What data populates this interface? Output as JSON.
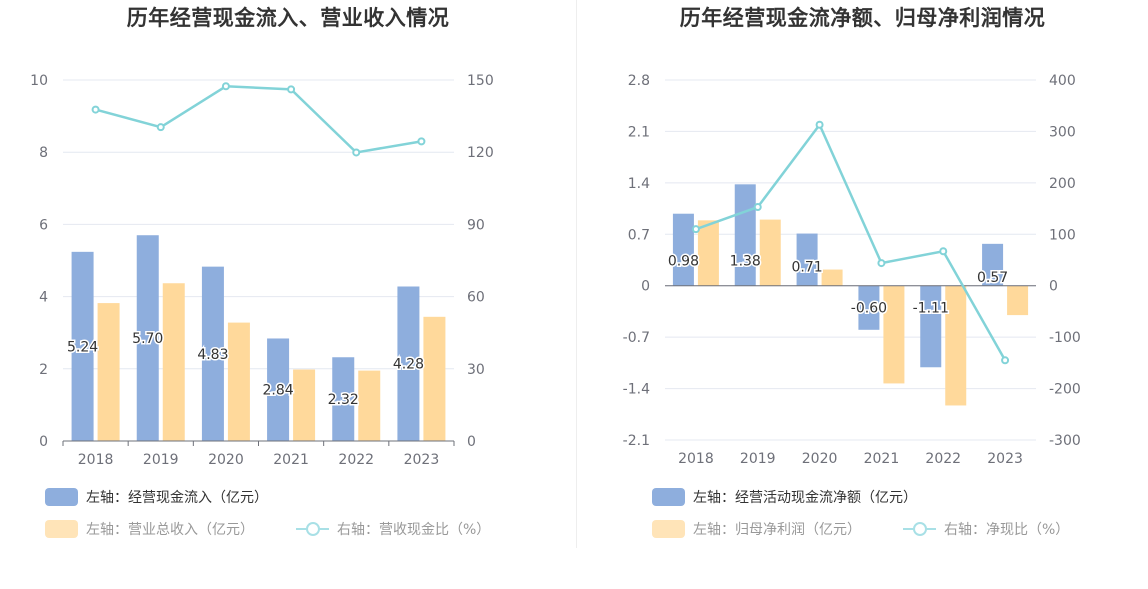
{
  "colors": {
    "blue": "#8eaedd",
    "orange": "#ffd99b",
    "teal": "#82d3d8",
    "grid": "#e4e8f1",
    "axis": "#6e7079"
  },
  "left": {
    "title": "历年经营现金流入、营业收入情况",
    "legend": {
      "bar1": "左轴：经营现金流入（亿元）",
      "bar2": "左轴：营业总收入（亿元）",
      "line": "右轴：营收现金比（%）"
    }
  },
  "right": {
    "title": "历年经营现金流净额、归母净利润情况",
    "legend": {
      "bar1": "左轴：经营活动现金流净额（亿元）",
      "bar2": "左轴：归母净利润（亿元）",
      "line": "右轴：净现比（%）"
    }
  },
  "chart_data": [
    {
      "type": "bar",
      "title": "历年经营现金流入、营业收入情况",
      "categories": [
        "2018",
        "2019",
        "2020",
        "2021",
        "2022",
        "2023"
      ],
      "left_axis": {
        "ylim": [
          0,
          10
        ],
        "ticks": [
          0,
          2,
          4,
          6,
          8,
          10
        ],
        "tick_labels": [
          "0",
          "2",
          "4",
          "6",
          "8",
          "10"
        ]
      },
      "right_axis": {
        "ylim": [
          0,
          150
        ],
        "ticks": [
          0,
          30,
          60,
          90,
          120,
          150
        ],
        "tick_labels": [
          "0",
          "30",
          "60",
          "90",
          "120",
          "150"
        ]
      },
      "series": [
        {
          "name": "左轴：经营现金流入（亿元）",
          "axis": "left",
          "kind": "bar",
          "values": [
            5.24,
            5.7,
            4.83,
            2.84,
            2.32,
            4.28
          ],
          "labels": [
            "5.24",
            "5.70",
            "4.83",
            "2.84",
            "2.32",
            "4.28"
          ]
        },
        {
          "name": "左轴：营业总收入（亿元）",
          "axis": "left",
          "kind": "bar",
          "values": [
            3.82,
            4.37,
            3.28,
            1.98,
            1.95,
            3.44
          ]
        },
        {
          "name": "右轴：营收现金比（%）",
          "axis": "right",
          "kind": "line",
          "values": [
            137.7,
            130.4,
            147.4,
            146.1,
            119.9,
            124.5
          ]
        }
      ],
      "grid": true,
      "legend_position": "bottom-left"
    },
    {
      "type": "bar",
      "title": "历年经营现金流净额、归母净利润情况",
      "categories": [
        "2018",
        "2019",
        "2020",
        "2021",
        "2022",
        "2023"
      ],
      "left_axis": {
        "ylim": [
          -2.1,
          2.8
        ],
        "ticks": [
          -2.1,
          -1.4,
          -0.7,
          0,
          0.7,
          1.4,
          2.1,
          2.8
        ],
        "tick_labels": [
          "-2.1",
          "-1.4",
          "-0.7",
          "0",
          "0.7",
          "1.4",
          "2.1",
          "2.8"
        ]
      },
      "right_axis": {
        "ylim": [
          -300,
          400
        ],
        "ticks": [
          -300,
          -200,
          -100,
          0,
          100,
          200,
          300,
          400
        ],
        "tick_labels": [
          "-300",
          "-200",
          "-100",
          "0",
          "100",
          "200",
          "300",
          "400"
        ]
      },
      "series": [
        {
          "name": "左轴：经营活动现金流净额（亿元）",
          "axis": "left",
          "kind": "bar",
          "values": [
            0.98,
            1.38,
            0.71,
            -0.6,
            -1.11,
            0.57
          ],
          "labels": [
            "0.98",
            "1.38",
            "0.71",
            "-0.60",
            "-1.11",
            "0.57"
          ]
        },
        {
          "name": "左轴：归母净利润（亿元）",
          "axis": "left",
          "kind": "bar",
          "values": [
            0.89,
            0.9,
            0.22,
            -1.33,
            -1.63,
            -0.4
          ]
        },
        {
          "name": "右轴：净现比（%）",
          "axis": "right",
          "kind": "line",
          "values": [
            110,
            153,
            313,
            44,
            67,
            -145
          ]
        }
      ],
      "grid": true,
      "legend_position": "bottom-left"
    }
  ]
}
